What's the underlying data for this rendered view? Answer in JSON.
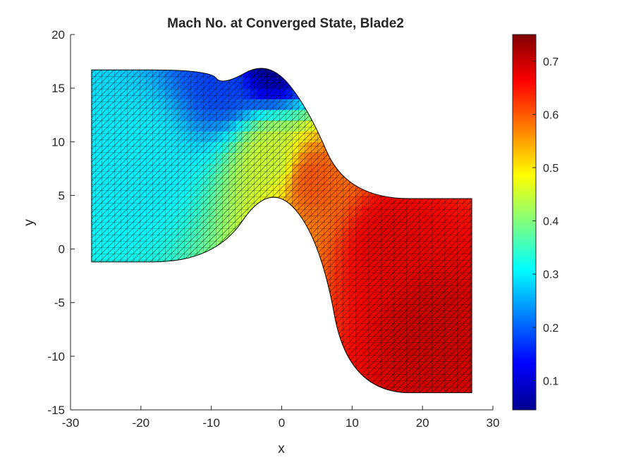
{
  "chart_data": {
    "type": "heatmap",
    "title": "Mach No. at Converged State, Blade2",
    "xlabel": "x",
    "ylabel": "y",
    "xlim": [
      -30,
      30
    ],
    "ylim": [
      -15,
      20
    ],
    "xticks": [
      -30,
      -20,
      -10,
      0,
      10,
      20,
      30
    ],
    "yticks": [
      -15,
      -10,
      -5,
      0,
      5,
      10,
      15,
      20
    ],
    "grid": false,
    "colormap": "jet",
    "colorbar": {
      "location": "right",
      "range": [
        0.045,
        0.75
      ],
      "ticks": [
        0.1,
        0.2,
        0.3,
        0.4,
        0.5,
        0.6,
        0.7
      ],
      "tick_labels": [
        "0.1",
        "0.2",
        "0.3",
        "0.4",
        "0.5",
        "0.6",
        "0.7"
      ]
    },
    "mesh": "triangulated, black edges",
    "domain_shape": {
      "upper_wall": [
        [
          -27,
          16.7
        ],
        [
          -10.2,
          16.7
        ],
        [
          -8.5,
          15.2
        ],
        [
          -2,
          17.6
        ],
        [
          3.5,
          13.5
        ],
        [
          9.3,
          4.7
        ],
        [
          27,
          4.7
        ]
      ],
      "lower_wall": [
        [
          -27,
          -1.2
        ],
        [
          -9.5,
          -1.2
        ],
        [
          -1.7,
          6.4
        ],
        [
          5.5,
          1
        ],
        [
          9.5,
          -13.4
        ],
        [
          27,
          -13.4
        ]
      ]
    },
    "mach_samples": [
      {
        "x": -20,
        "y": 8,
        "mach": 0.3
      },
      {
        "x": -9,
        "y": 15.5,
        "mach": 0.18
      },
      {
        "x": -2,
        "y": 17,
        "mach": 0.06
      },
      {
        "x": -2,
        "y": 8,
        "mach": 0.45
      },
      {
        "x": 4,
        "y": 6,
        "mach": 0.6
      },
      {
        "x": 15,
        "y": 0,
        "mach": 0.68
      },
      {
        "x": 20,
        "y": -8,
        "mach": 0.7
      }
    ]
  }
}
